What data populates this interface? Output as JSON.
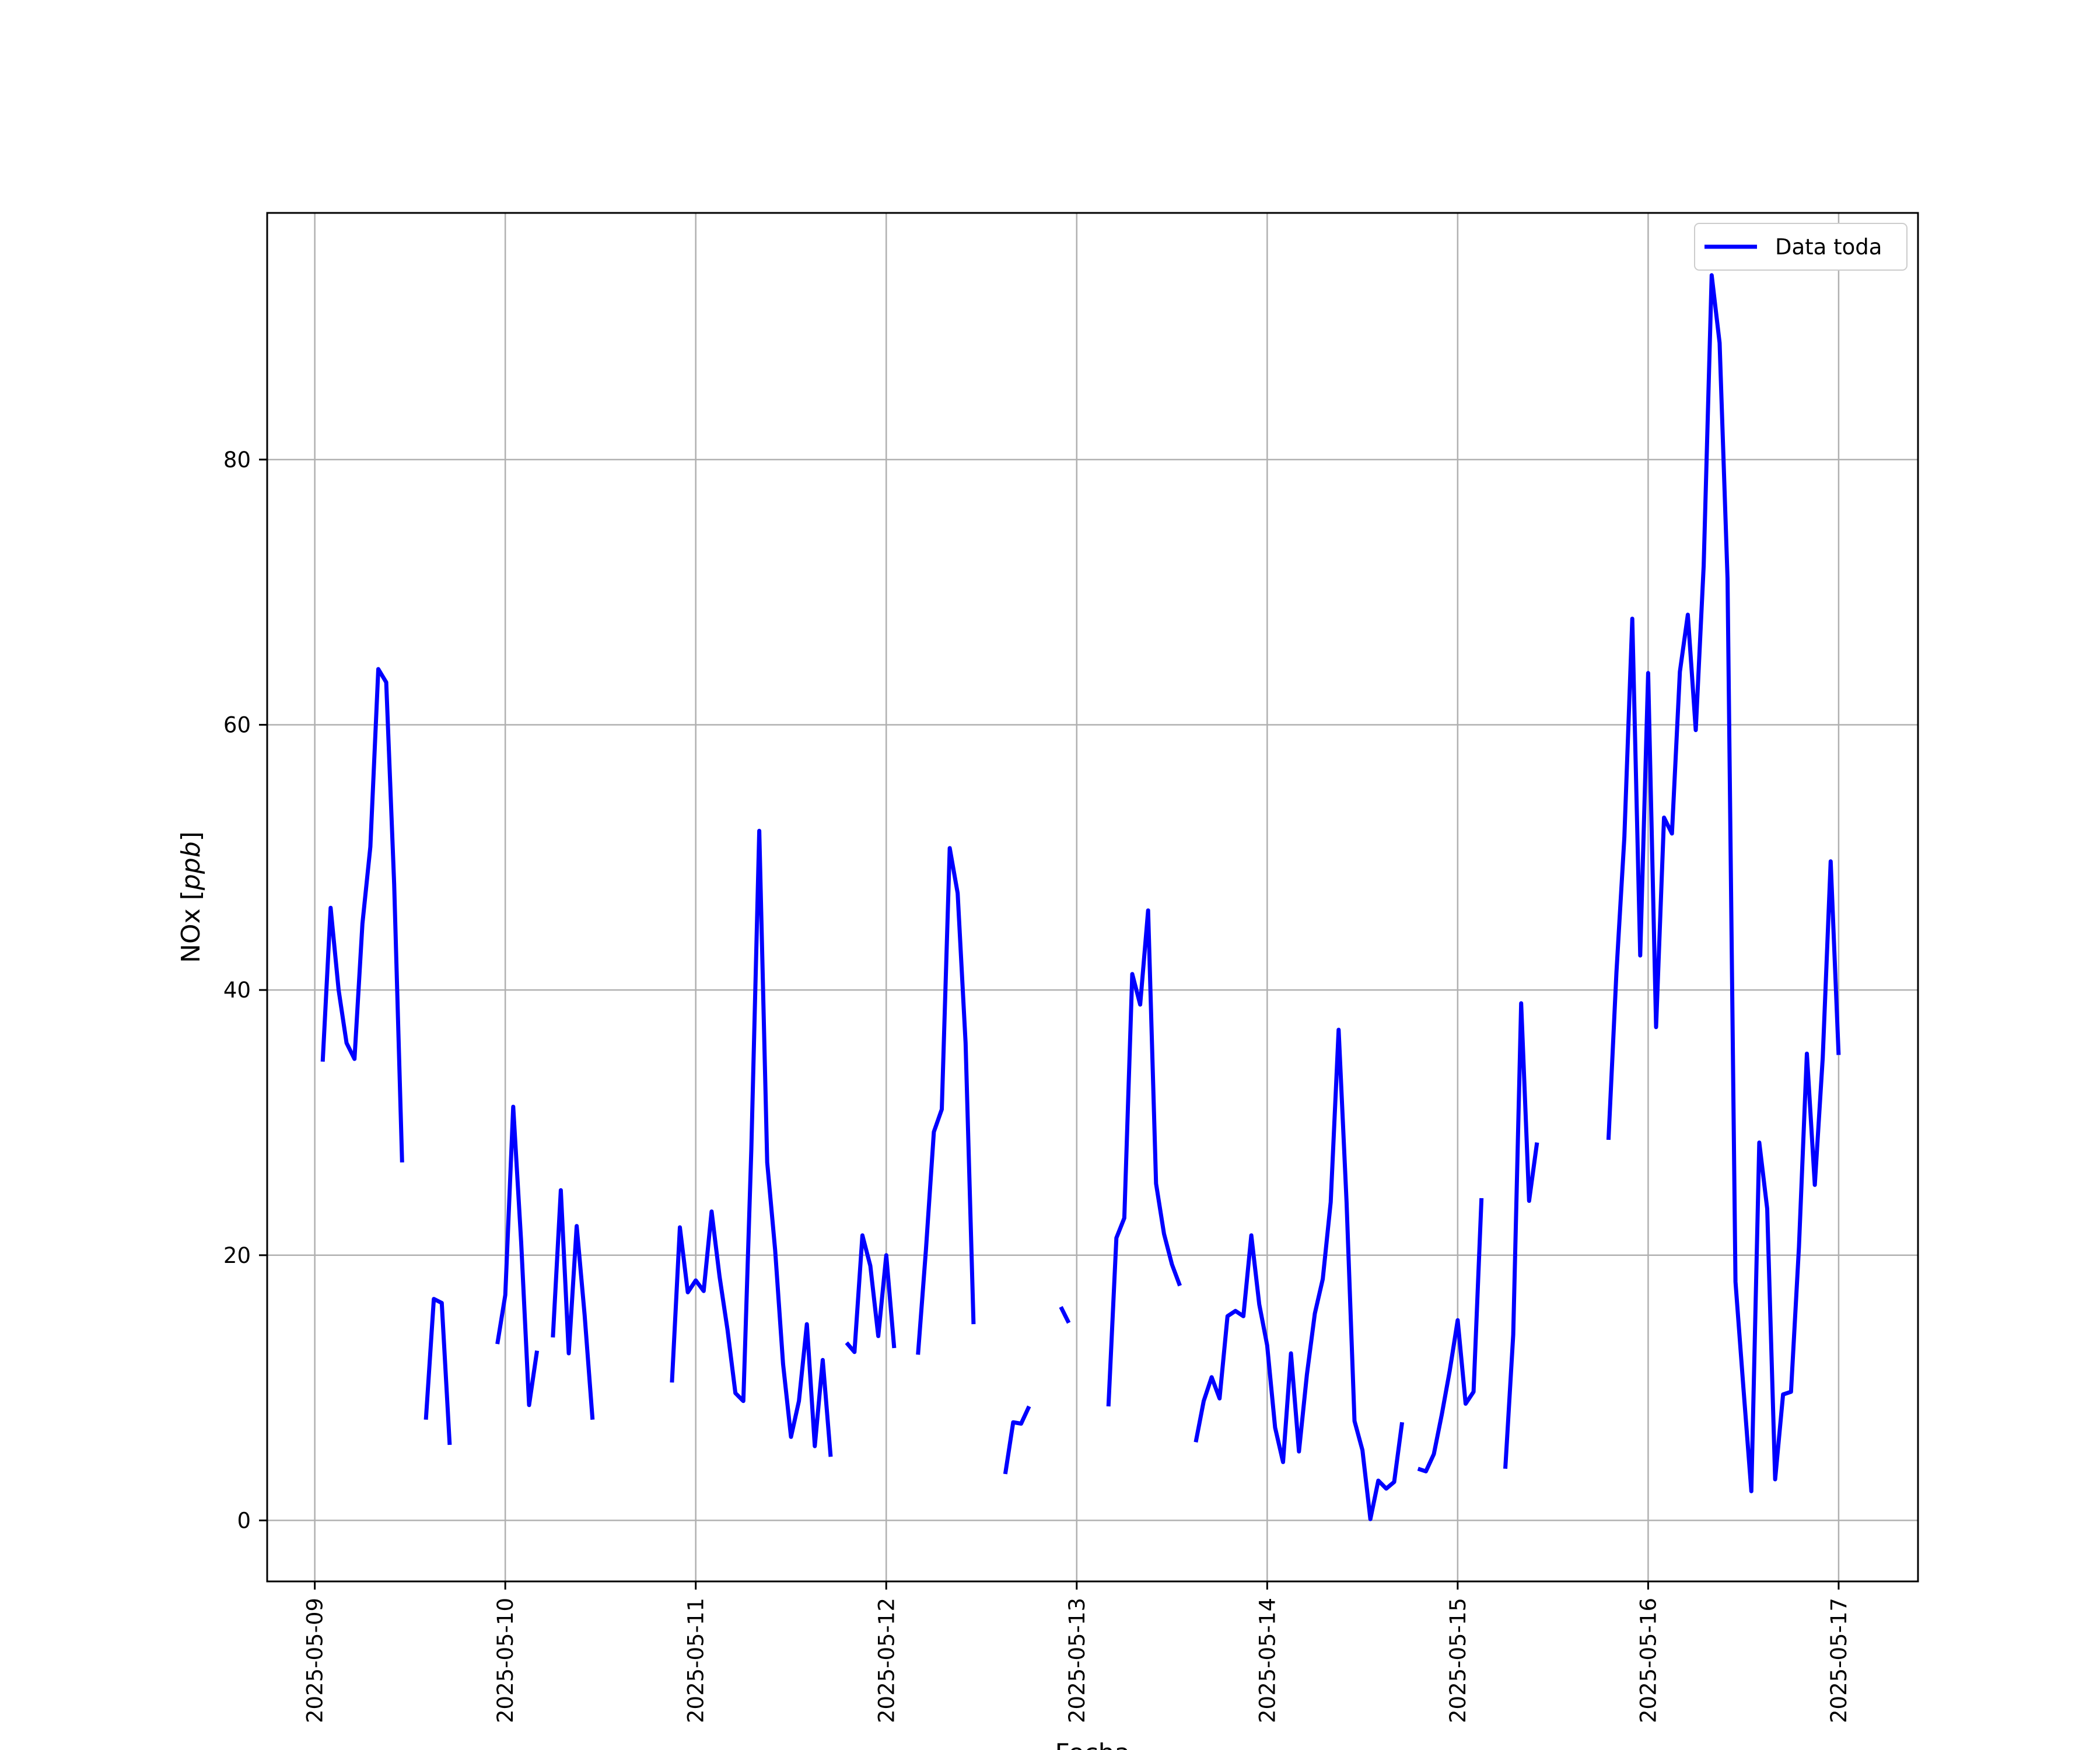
{
  "chart_data": {
    "type": "line",
    "title": "",
    "xlabel": "Fecha",
    "ylabel": "NOx [ppb]",
    "ylabel_parts": {
      "prefix": "NOx [",
      "italic": "ppb",
      "suffix": "]"
    },
    "xlim": [
      "2025-05-08 18:00",
      "2025-05-17 10:00"
    ],
    "ylim": [
      -4.6,
      98.6
    ],
    "x_tick_labels": [
      "2025-05-09",
      "2025-05-10",
      "2025-05-11",
      "2025-05-12",
      "2025-05-13",
      "2025-05-14",
      "2025-05-15",
      "2025-05-16",
      "2025-05-17"
    ],
    "y_ticks": [
      0,
      20,
      40,
      60,
      80
    ],
    "y_tick_labels": [
      "0",
      "20",
      "40",
      "60",
      "80"
    ],
    "grid": true,
    "legend_position": "top-right",
    "series": [
      {
        "name": "Data toda",
        "color": "#0000ff",
        "segments": [
          [
            [
              "2025-05-09 01:00",
              34.6
            ],
            [
              "2025-05-09 02:00",
              46.2
            ],
            [
              "2025-05-09 03:00",
              40
            ],
            [
              "2025-05-09 04:00",
              36
            ],
            [
              "2025-05-09 05:00",
              34.8
            ],
            [
              "2025-05-09 06:00",
              45
            ],
            [
              "2025-05-09 07:00",
              50.8
            ],
            [
              "2025-05-09 08:00",
              64.2
            ],
            [
              "2025-05-09 09:00",
              63.2
            ],
            [
              "2025-05-09 10:00",
              48
            ],
            [
              "2025-05-09 11:00",
              27
            ]
          ],
          [
            [
              "2025-05-09 14:00",
              7.6
            ],
            [
              "2025-05-09 15:00",
              16.7
            ],
            [
              "2025-05-09 16:00",
              16.4
            ],
            [
              "2025-05-09 17:00",
              5.7
            ]
          ],
          [
            [
              "2025-05-09 23:00",
              13.3
            ],
            [
              "2025-05-10 00:00",
              17
            ],
            [
              "2025-05-10 01:00",
              31.2
            ],
            [
              "2025-05-10 02:00",
              21
            ],
            [
              "2025-05-10 03:00",
              8.7
            ],
            [
              "2025-05-10 04:00",
              12.8
            ]
          ],
          [
            [
              "2025-05-10 06:00",
              13.8
            ],
            [
              "2025-05-10 07:00",
              24.9
            ],
            [
              "2025-05-10 08:00",
              12.6
            ],
            [
              "2025-05-10 09:00",
              22.2
            ],
            [
              "2025-05-10 10:00",
              15.5
            ],
            [
              "2025-05-10 11:00",
              7.6
            ]
          ],
          [
            [
              "2025-05-10 21:00",
              10.4
            ],
            [
              "2025-05-10 22:00",
              22.1
            ],
            [
              "2025-05-10 23:00",
              17.2
            ],
            [
              "2025-05-11 00:00",
              18.1
            ],
            [
              "2025-05-11 01:00",
              17.3
            ],
            [
              "2025-05-11 02:00",
              23.3
            ],
            [
              "2025-05-11 03:00",
              18.4
            ],
            [
              "2025-05-11 04:00",
              14.4
            ],
            [
              "2025-05-11 05:00",
              9.6
            ],
            [
              "2025-05-11 06:00",
              9
            ],
            [
              "2025-05-11 07:00",
              28
            ],
            [
              "2025-05-11 08:00",
              52
            ],
            [
              "2025-05-11 09:00",
              27
            ],
            [
              "2025-05-11 10:00",
              20.4
            ],
            [
              "2025-05-11 11:00",
              11.8
            ],
            [
              "2025-05-11 12:00",
              6.3
            ],
            [
              "2025-05-11 13:00",
              9
            ],
            [
              "2025-05-11 14:00",
              14.8
            ],
            [
              "2025-05-11 15:00",
              5.6
            ],
            [
              "2025-05-11 16:00",
              12.1
            ],
            [
              "2025-05-11 17:00",
              4.8
            ]
          ],
          [
            [
              "2025-05-11 19:00",
              13.4
            ],
            [
              "2025-05-11 20:00",
              12.7
            ],
            [
              "2025-05-11 21:00",
              21.5
            ],
            [
              "2025-05-11 22:00",
              19.2
            ],
            [
              "2025-05-11 23:00",
              13.9
            ],
            [
              "2025-05-12 00:00",
              20
            ],
            [
              "2025-05-12 01:00",
              13
            ]
          ],
          [
            [
              "2025-05-12 04:00",
              12.5
            ],
            [
              "2025-05-12 05:00",
              20.4
            ],
            [
              "2025-05-12 06:00",
              29.3
            ],
            [
              "2025-05-12 07:00",
              31
            ],
            [
              "2025-05-12 08:00",
              50.7
            ],
            [
              "2025-05-12 09:00",
              47.3
            ],
            [
              "2025-05-12 10:00",
              36
            ],
            [
              "2025-05-12 11:00",
              14.8
            ]
          ],
          [
            [
              "2025-05-12 15:00",
              3.5
            ],
            [
              "2025-05-12 16:00",
              7.4
            ],
            [
              "2025-05-12 17:00",
              7.3
            ],
            [
              "2025-05-12 18:00",
              8.6
            ]
          ],
          [
            [
              "2025-05-12 22:00",
              16.1
            ],
            [
              "2025-05-12 23:00",
              14.9
            ]
          ],
          [
            [
              "2025-05-13 04:00",
              8.6
            ],
            [
              "2025-05-13 05:00",
              21.3
            ],
            [
              "2025-05-13 06:00",
              22.8
            ],
            [
              "2025-05-13 07:00",
              41.2
            ],
            [
              "2025-05-13 08:00",
              38.9
            ],
            [
              "2025-05-13 09:00",
              46
            ],
            [
              "2025-05-13 10:00",
              25.4
            ],
            [
              "2025-05-13 11:00",
              21.6
            ],
            [
              "2025-05-13 12:00",
              19.3
            ],
            [
              "2025-05-13 13:00",
              17.7
            ]
          ],
          [
            [
              "2025-05-13 15:00",
              5.9
            ],
            [
              "2025-05-13 16:00",
              9
            ],
            [
              "2025-05-13 17:00",
              10.8
            ],
            [
              "2025-05-13 18:00",
              9.2
            ],
            [
              "2025-05-13 19:00",
              15.4
            ],
            [
              "2025-05-13 20:00",
              15.8
            ],
            [
              "2025-05-13 21:00",
              15.4
            ],
            [
              "2025-05-13 22:00",
              21.5
            ],
            [
              "2025-05-13 23:00",
              16.3
            ],
            [
              "2025-05-14 00:00",
              13.2
            ],
            [
              "2025-05-14 01:00",
              7
            ],
            [
              "2025-05-14 02:00",
              4.4
            ],
            [
              "2025-05-14 03:00",
              12.6
            ],
            [
              "2025-05-14 04:00",
              5.2
            ],
            [
              "2025-05-14 05:00",
              11
            ],
            [
              "2025-05-14 06:00",
              15.6
            ],
            [
              "2025-05-14 07:00",
              18.2
            ],
            [
              "2025-05-14 08:00",
              24
            ],
            [
              "2025-05-14 09:00",
              37
            ],
            [
              "2025-05-14 10:00",
              24
            ],
            [
              "2025-05-14 11:00",
              7.5
            ],
            [
              "2025-05-14 12:00",
              5.3
            ],
            [
              "2025-05-14 13:00",
              0.1
            ],
            [
              "2025-05-14 14:00",
              3
            ],
            [
              "2025-05-14 15:00",
              2.4
            ],
            [
              "2025-05-14 16:00",
              2.9
            ],
            [
              "2025-05-14 17:00",
              7.4
            ]
          ],
          [
            [
              "2025-05-14 19:00",
              3.9
            ],
            [
              "2025-05-14 20:00",
              3.7
            ],
            [
              "2025-05-14 21:00",
              5
            ],
            [
              "2025-05-14 22:00",
              8
            ],
            [
              "2025-05-14 23:00",
              11.3
            ],
            [
              "2025-05-15 00:00",
              15.1
            ],
            [
              "2025-05-15 01:00",
              8.8
            ],
            [
              "2025-05-15 02:00",
              9.7
            ],
            [
              "2025-05-15 03:00",
              24.3
            ]
          ],
          [
            [
              "2025-05-15 06:00",
              3.9
            ],
            [
              "2025-05-15 07:00",
              14
            ],
            [
              "2025-05-15 08:00",
              39
            ],
            [
              "2025-05-15 09:00",
              24.1
            ],
            [
              "2025-05-15 10:00",
              28.5
            ]
          ],
          [
            [
              "2025-05-15 19:00",
              28.7
            ],
            [
              "2025-05-15 20:00",
              41.3
            ],
            [
              "2025-05-15 21:00",
              51.5
            ],
            [
              "2025-05-15 22:00",
              68
            ],
            [
              "2025-05-15 23:00",
              42.6
            ],
            [
              "2025-05-16 00:00",
              63.9
            ],
            [
              "2025-05-16 01:00",
              37.2
            ],
            [
              "2025-05-16 02:00",
              53
            ],
            [
              "2025-05-16 03:00",
              51.8
            ],
            [
              "2025-05-16 04:00",
              64
            ],
            [
              "2025-05-16 05:00",
              68.3
            ],
            [
              "2025-05-16 06:00",
              59.6
            ],
            [
              "2025-05-16 07:00",
              72
            ],
            [
              "2025-05-16 08:00",
              93.9
            ],
            [
              "2025-05-16 09:00",
              88.8
            ],
            [
              "2025-05-16 10:00",
              71
            ],
            [
              "2025-05-16 11:00",
              18
            ],
            [
              "2025-05-16 12:00",
              10
            ],
            [
              "2025-05-16 13:00",
              2.2
            ],
            [
              "2025-05-16 14:00",
              28.5
            ],
            [
              "2025-05-16 15:00",
              23.5
            ],
            [
              "2025-05-16 16:00",
              3.1
            ],
            [
              "2025-05-16 17:00",
              9.5
            ],
            [
              "2025-05-16 18:00",
              9.7
            ],
            [
              "2025-05-16 19:00",
              20.6
            ],
            [
              "2025-05-16 20:00",
              35.2
            ],
            [
              "2025-05-16 21:00",
              25.3
            ],
            [
              "2025-05-16 22:00",
              34.9
            ],
            [
              "2025-05-16 23:00",
              49.7
            ],
            [
              "2025-05-17 00:00",
              35.1
            ]
          ]
        ]
      }
    ]
  }
}
